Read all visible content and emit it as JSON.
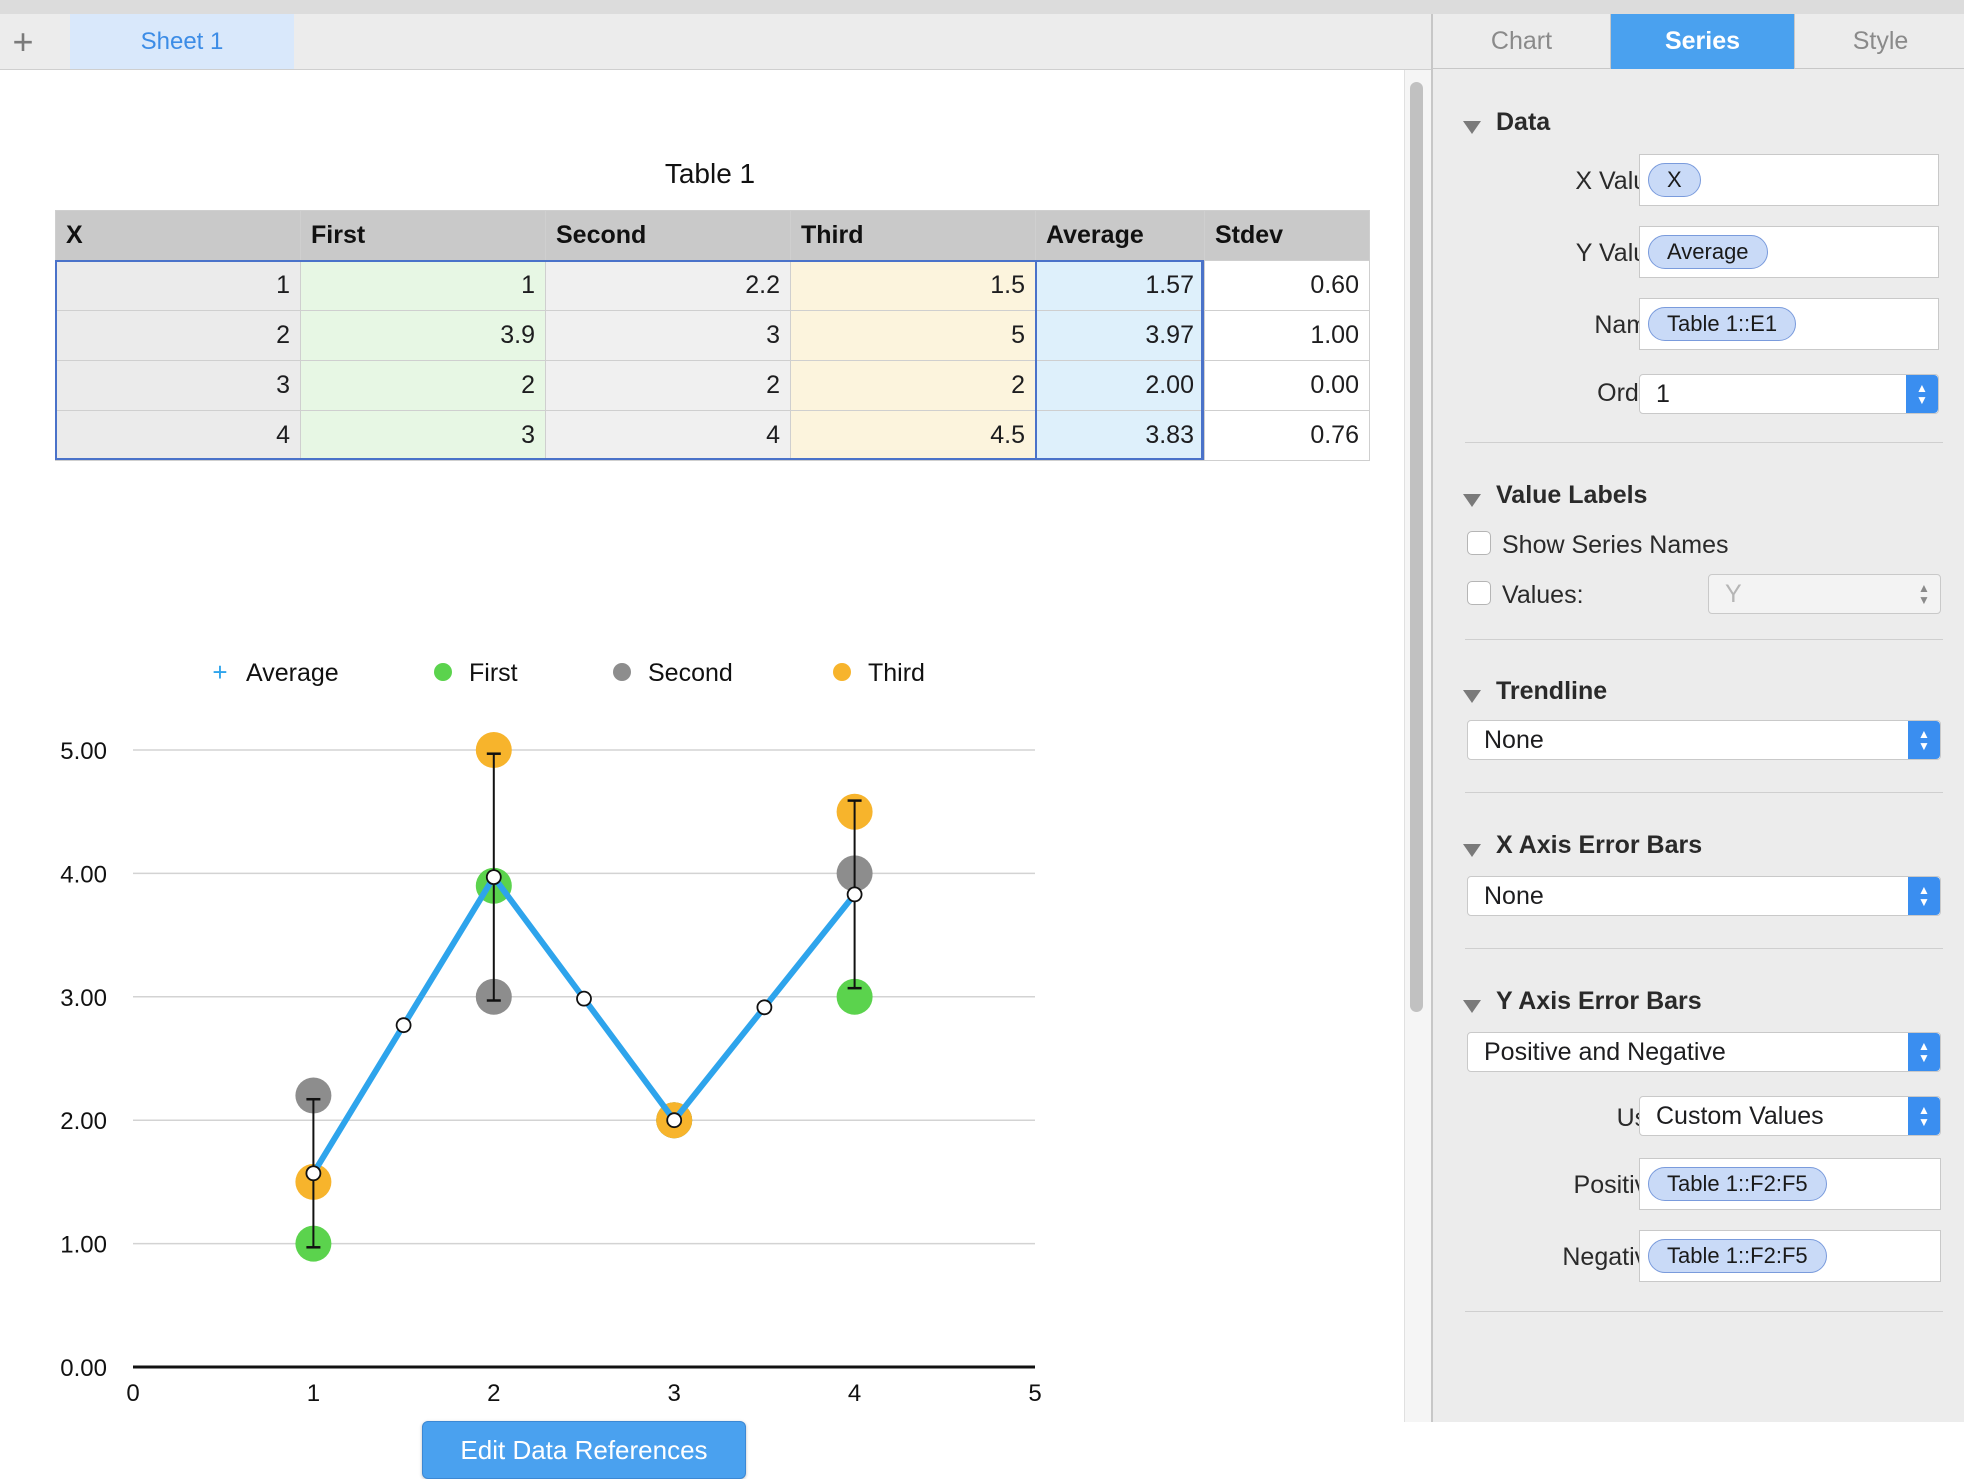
{
  "sheet_tabs": {
    "add_label": "+",
    "active": "Sheet 1"
  },
  "table": {
    "title": "Table 1",
    "headers": [
      "X",
      "First",
      "Second",
      "Third",
      "Average",
      "Stdev"
    ],
    "rows": [
      [
        "1",
        "1",
        "2.2",
        "1.5",
        "1.57",
        "0.60"
      ],
      [
        "2",
        "3.9",
        "3",
        "5",
        "3.97",
        "1.00"
      ],
      [
        "3",
        "2",
        "2",
        "2",
        "2.00",
        "0.00"
      ],
      [
        "4",
        "3",
        "4",
        "4.5",
        "3.83",
        "0.76"
      ]
    ]
  },
  "chart_data": {
    "type": "scatter",
    "xlim": [
      0,
      5
    ],
    "ylim": [
      0,
      5
    ],
    "x_ticks": [
      "0",
      "1",
      "2",
      "3",
      "4",
      "5"
    ],
    "y_ticks": [
      "0.00",
      "1.00",
      "2.00",
      "3.00",
      "4.00",
      "5.00"
    ],
    "grid": true,
    "legend_position": "top",
    "series": [
      {
        "name": "Average",
        "color": "#2ea4ec",
        "x": [
          1,
          2,
          3,
          4
        ],
        "y": [
          1.57,
          3.97,
          2.0,
          3.83
        ],
        "error": [
          0.6,
          1.0,
          0.0,
          0.76
        ],
        "connected": true,
        "marker": "plus"
      },
      {
        "name": "First",
        "color": "#5bd34d",
        "x": [
          1,
          2,
          3,
          4
        ],
        "y": [
          1,
          3.9,
          2,
          3
        ]
      },
      {
        "name": "Second",
        "color": "#8d8d8d",
        "x": [
          1,
          2,
          3,
          4
        ],
        "y": [
          2.2,
          3,
          2,
          4
        ]
      },
      {
        "name": "Third",
        "color": "#f7b42c",
        "x": [
          1,
          2,
          3,
          4
        ],
        "y": [
          1.5,
          5,
          2,
          4.5
        ]
      }
    ]
  },
  "edit_refs_label": "Edit Data References",
  "inspector": {
    "tabs": [
      "Chart",
      "Series",
      "Style"
    ],
    "active_tab": "Series",
    "data": {
      "title": "Data",
      "x_label": "X Value:",
      "x_token": "X",
      "y_label": "Y Value:",
      "y_token": "Average",
      "name_label": "Name:",
      "name_token": "Table 1::E1",
      "order_label": "Order:",
      "order_value": "1"
    },
    "value_labels": {
      "title": "Value Labels",
      "show_series_names": "Show Series Names",
      "values_label": "Values:",
      "values_select": "Y"
    },
    "trendline": {
      "title": "Trendline",
      "value": "None"
    },
    "x_error": {
      "title": "X Axis Error Bars",
      "value": "None"
    },
    "y_error": {
      "title": "Y Axis Error Bars",
      "value": "Positive and Negative",
      "use_label": "Use:",
      "use_value": "Custom Values",
      "positive_label": "Positive:",
      "positive_token": "Table 1::F2:F5",
      "negative_label": "Negative:",
      "negative_token": "Table 1::F2:F5"
    }
  }
}
